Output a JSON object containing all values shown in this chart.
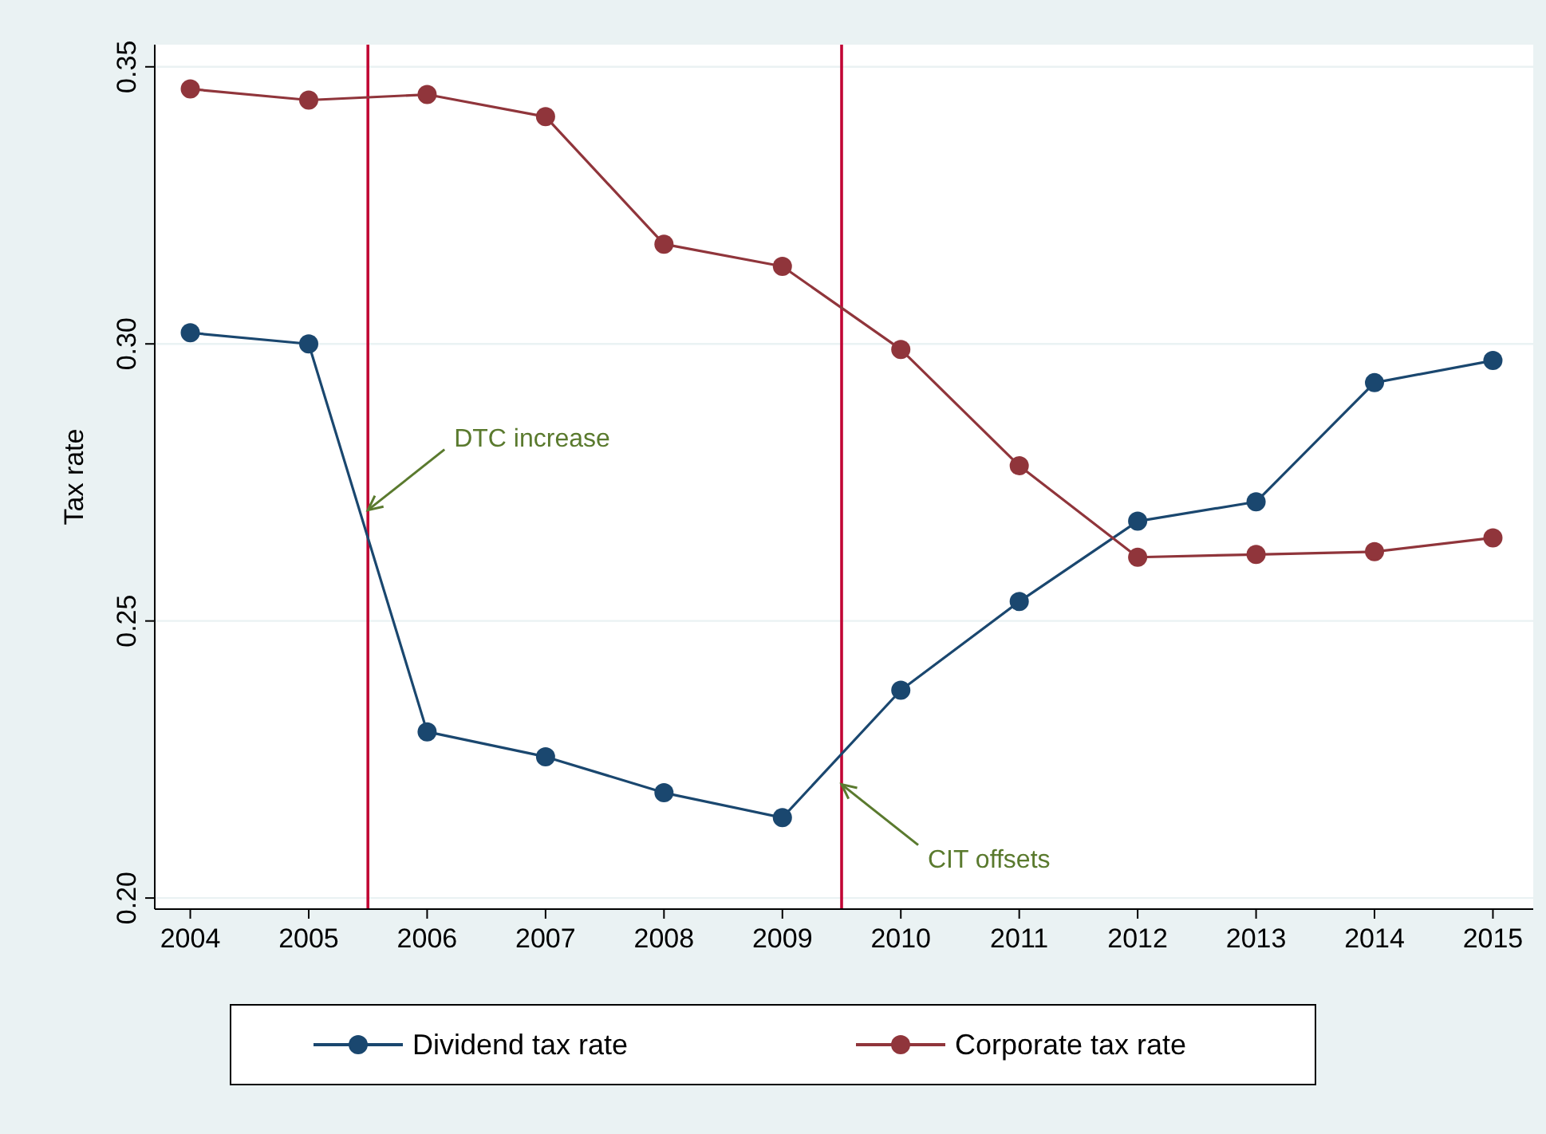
{
  "chart_data": {
    "type": "line",
    "ylabel": "Tax rate",
    "x": [
      2004,
      2005,
      2006,
      2007,
      2008,
      2009,
      2010,
      2011,
      2012,
      2013,
      2014,
      2015
    ],
    "series": [
      {
        "name": "Dividend tax rate",
        "color": "#1a476f",
        "values": [
          0.302,
          0.3,
          0.23,
          0.2255,
          0.219,
          0.2145,
          0.2375,
          0.2535,
          0.268,
          0.2715,
          0.293,
          0.297
        ]
      },
      {
        "name": "Corporate tax rate",
        "color": "#90353b",
        "values": [
          0.346,
          0.344,
          0.345,
          0.341,
          0.318,
          0.314,
          0.299,
          0.278,
          0.2615,
          0.262,
          0.2625,
          0.265
        ]
      }
    ],
    "xlim": [
      2003.7,
      2015.3
    ],
    "ylim": [
      0.198,
      0.354
    ],
    "xticks": [
      2004,
      2005,
      2006,
      2007,
      2008,
      2009,
      2010,
      2011,
      2012,
      2013,
      2014,
      2015
    ],
    "yticks": [
      {
        "value": 0.2,
        "label": "0.20"
      },
      {
        "value": 0.25,
        "label": "0.25"
      },
      {
        "value": 0.3,
        "label": "0.30"
      },
      {
        "value": 0.35,
        "label": "0.35"
      }
    ],
    "ref_lines": [
      {
        "axis": "x",
        "value": 2005.5,
        "color": "#c10534"
      },
      {
        "axis": "x",
        "value": 2009.5,
        "color": "#c10534"
      }
    ],
    "annotations": [
      {
        "text": "DTC increase",
        "x": 2005.5,
        "y": 0.27
      },
      {
        "text": "CIT offsets",
        "x": 2009.5,
        "y": 0.2205
      }
    ],
    "grid": "y",
    "legend": "bottom",
    "marker": "circle",
    "line_style": "solid"
  }
}
